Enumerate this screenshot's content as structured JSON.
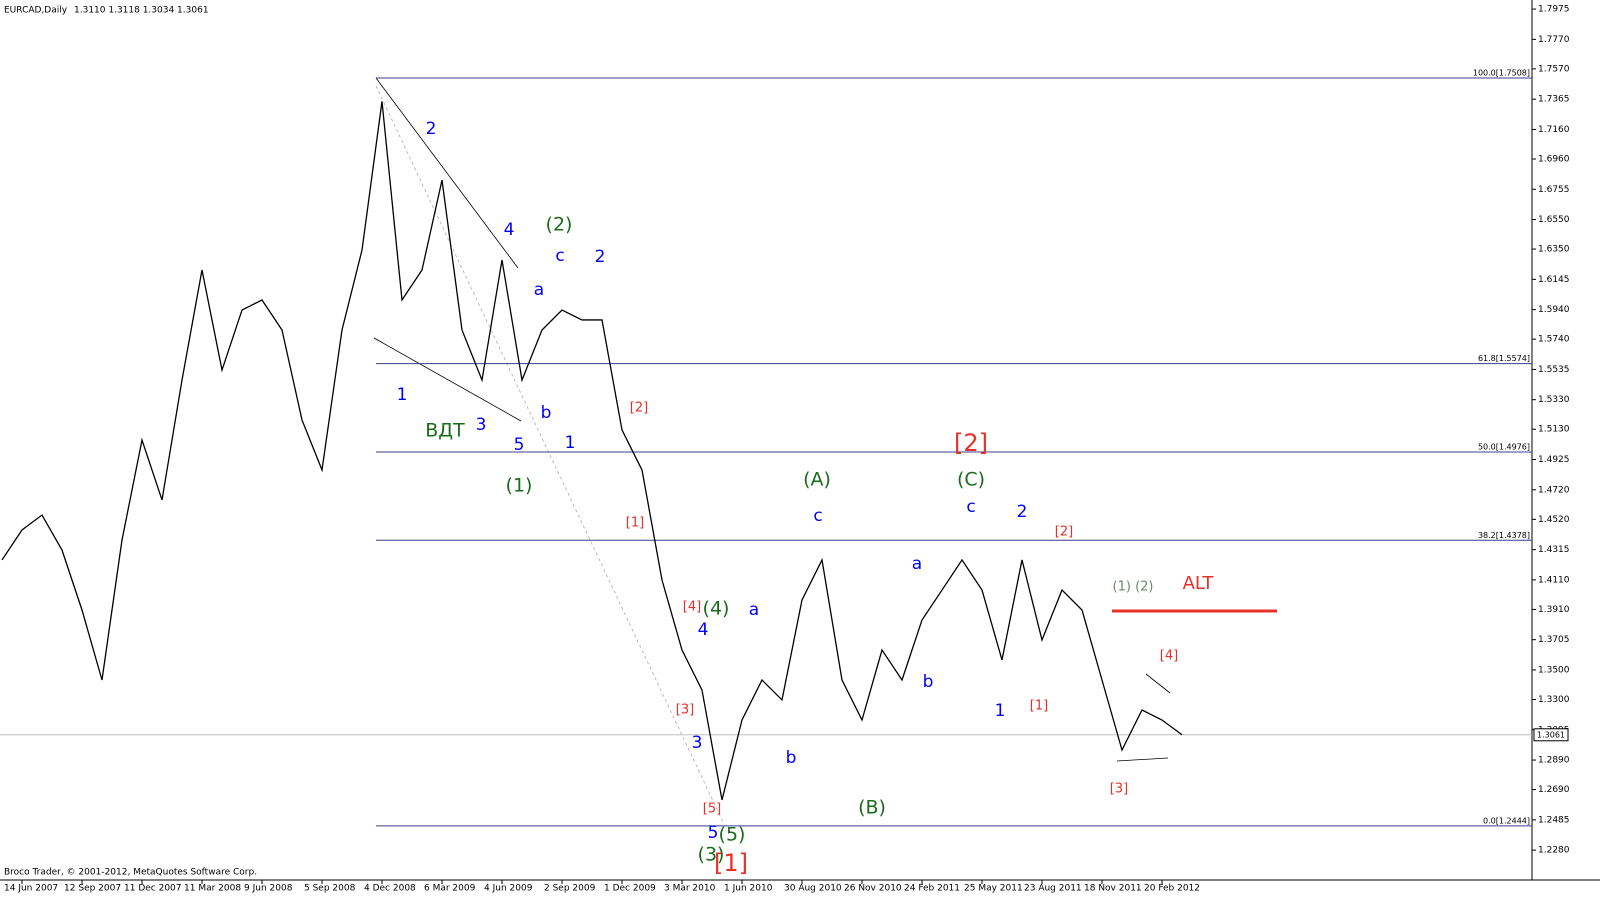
{
  "chart_data": {
    "type": "line",
    "title": "EURCAD,Daily",
    "subtitle": "1.3110 1.3118 1.3034 1.3061",
    "footer": "Broco Trader, © 2001-2012, MetaQuotes Software Corp.",
    "color": "#000000",
    "categories": [
      null,
      "14 Jun 2007",
      null,
      null,
      "12 Sep 2007",
      null,
      null,
      "11 Dec 2007",
      null,
      null,
      "11 Mar 2008",
      null,
      null,
      "9 Jun 2008",
      null,
      null,
      "5 Sep 2008",
      null,
      null,
      "4 Dec 2008",
      null,
      null,
      "6 Mar 2009",
      null,
      null,
      "4 Jun 2009",
      null,
      null,
      "2 Sep 2009",
      null,
      null,
      "1 Dec 2009",
      null,
      null,
      "3 Mar 2010",
      null,
      null,
      "1 Jun 2010",
      null,
      null,
      "30 Aug 2010",
      null,
      null,
      "26 Nov 2010",
      null,
      null,
      "24 Feb 2011",
      null,
      null,
      "25 May 2011",
      null,
      null,
      "23 Aug 2011",
      null,
      null,
      "18 Nov 2011",
      null,
      null,
      "20 Feb 2012",
      null
    ],
    "values": [
      1.4245,
      1.4448,
      1.4549,
      1.4312,
      1.3906,
      1.3432,
      1.438,
      1.5057,
      1.4651,
      1.5463,
      1.6208,
      1.5531,
      1.5937,
      1.6005,
      1.5802,
      1.5193,
      1.4854,
      1.5802,
      1.6343,
      1.735,
      1.6005,
      1.6208,
      1.6817,
      1.5802,
      1.5463,
      1.6276,
      1.5463,
      1.5802,
      1.5937,
      1.587,
      1.587,
      1.5125,
      1.4854,
      1.4109,
      1.3635,
      1.3364,
      1.262,
      1.3161,
      1.3432,
      1.3297,
      1.3974,
      1.4245,
      1.3432,
      1.3161,
      1.3635,
      1.3432,
      1.3838,
      1.4041,
      1.4245,
      1.4041,
      1.3568,
      1.4245,
      1.3703,
      1.4041,
      1.3906,
      1.3432,
      1.2958,
      1.3229,
      1.3161,
      1.3061
    ],
    "ylim": [
      1.201,
      1.8023
    ],
    "yticks": [
      1.7975,
      {
        "value": 1.777,
        "label": "1.7770"
      },
      {
        "value": 1.757,
        "label": "1.7570"
      },
      1.7365,
      {
        "value": 1.716,
        "label": "1.7160"
      },
      {
        "value": 1.696,
        "label": "1.6960"
      },
      1.6755,
      {
        "value": 1.655,
        "label": "1.6550"
      },
      {
        "value": 1.635,
        "label": "1.6350"
      },
      1.6145,
      {
        "value": 1.594,
        "label": "1.5940"
      },
      {
        "value": 1.574,
        "label": "1.5740"
      },
      1.5535,
      {
        "value": 1.533,
        "label": "1.5330"
      },
      {
        "value": 1.513,
        "label": "1.5130"
      },
      1.4925,
      {
        "value": 1.472,
        "label": "1.4720"
      },
      {
        "value": 1.452,
        "label": "1.4520"
      },
      1.4315,
      {
        "value": 1.411,
        "label": "1.4110"
      },
      {
        "value": 1.391,
        "label": "1.3910"
      },
      1.3705,
      {
        "value": 1.35,
        "label": "1.3500"
      },
      {
        "value": 1.33,
        "label": "1.3300"
      },
      1.3095,
      {
        "value": 1.289,
        "label": "1.2890"
      },
      {
        "value": 1.269,
        "label": "1.2690"
      },
      1.2485,
      {
        "value": 1.228,
        "label": "1.2280"
      }
    ],
    "current_price": 1.3061,
    "fib_levels": [
      {
        "value": 1.7508,
        "label": "100.0[1.7508]"
      },
      {
        "value": 1.5574,
        "label": "61.8[1.5574]"
      },
      {
        "value": 1.4976,
        "label": "50.0[1.4976]"
      },
      {
        "value": 1.4378,
        "label": "38.2[1.4378]"
      },
      {
        "value": 1.2444,
        "label": "0.0[1.2444]"
      }
    ],
    "fib_color": "#3c3c8c",
    "annotations": [
      {
        "text": "2",
        "color": "#0000ff"
      },
      {
        "text": "4",
        "color": "#0000ff"
      },
      {
        "text": "(2)",
        "color": "#1a6b1a"
      },
      {
        "text": "c",
        "color": "#0000ff"
      },
      {
        "text": "2",
        "color": "#0000ff"
      },
      {
        "text": "a",
        "color": "#0000ff"
      },
      {
        "text": "1",
        "color": "#0000ff"
      },
      {
        "text": "ВДТ",
        "color": "#1a6b1a"
      },
      {
        "text": "3",
        "color": "#0000ff"
      },
      {
        "text": "5",
        "color": "#0000ff"
      },
      {
        "text": "b",
        "color": "#0000ff"
      },
      {
        "text": "1",
        "color": "#0000ff"
      },
      {
        "text": "(1)",
        "color": "#1a6b1a"
      },
      {
        "text": "[2]",
        "color": "#e8302a"
      },
      {
        "text": "[1]",
        "color": "#e8302a"
      },
      {
        "text": "[4]",
        "color": "#e8302a"
      },
      {
        "text": "(4)",
        "color": "#1a6b1a"
      },
      {
        "text": "a",
        "color": "#0000ff"
      },
      {
        "text": "4",
        "color": "#0000ff"
      },
      {
        "text": "[3]",
        "color": "#e8302a"
      },
      {
        "text": "3",
        "color": "#0000ff"
      },
      {
        "text": "[5]",
        "color": "#e8302a"
      },
      {
        "text": "5",
        "color": "#0000ff"
      },
      {
        "text": "(5)",
        "color": "#1a6b1a"
      },
      {
        "text": "(3)",
        "color": "#1a6b1a"
      },
      {
        "text": "[1]",
        "color": "#e8302a"
      },
      {
        "text": "b",
        "color": "#0000ff"
      },
      {
        "text": "(A)",
        "color": "#1a6b1a"
      },
      {
        "text": "c",
        "color": "#0000ff"
      },
      {
        "text": "(B)",
        "color": "#1a6b1a"
      },
      {
        "text": "a",
        "color": "#0000ff"
      },
      {
        "text": "b",
        "color": "#0000ff"
      },
      {
        "text": "[2]",
        "color": "#e8302a"
      },
      {
        "text": "(C)",
        "color": "#1a6b1a"
      },
      {
        "text": "c",
        "color": "#0000ff"
      },
      {
        "text": "2",
        "color": "#0000ff"
      },
      {
        "text": "1",
        "color": "#0000ff"
      },
      {
        "text": "[1]",
        "color": "#e8302a"
      },
      {
        "text": "[2]",
        "color": "#e8302a"
      },
      {
        "text": "(1) (2)",
        "color": "#6b8a6b"
      },
      {
        "text": "ALT",
        "color": "#e8302a"
      },
      {
        "text": "[4]",
        "color": "#e8302a"
      },
      {
        "text": "[3]",
        "color": "#e8302a"
      }
    ]
  }
}
